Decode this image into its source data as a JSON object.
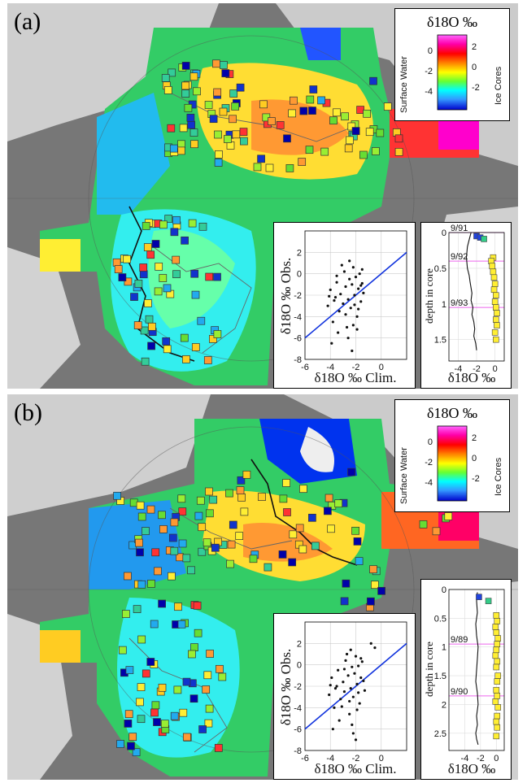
{
  "panels": [
    {
      "label": "(a)",
      "legend": {
        "title": "δ18O ‰",
        "left_label": "Surface Water",
        "right_label": "Ice Cores",
        "left_ticks": [
          "0",
          "-2",
          "-4"
        ],
        "right_ticks": [
          "2",
          "0",
          "-2"
        ]
      },
      "scatter": {
        "xlabel": "δ18O ‰ Clim.",
        "ylabel": "δ18O ‰ Obs.",
        "xticks": [
          "-6",
          "-4",
          "-2",
          "0"
        ],
        "yticks": [
          "2",
          "0",
          "-2",
          "-4",
          "-6",
          "-8"
        ]
      },
      "profile": {
        "xlabel": "δ18O ‰",
        "ylabel": "depth in core",
        "xticks": [
          "-4",
          "-2",
          "0"
        ],
        "yticks": [
          "0",
          "0.5",
          "1",
          "1.5"
        ],
        "year_labels": [
          "9/91",
          "9/92",
          "9/93"
        ]
      }
    },
    {
      "label": "(b)",
      "legend": {
        "title": "δ18O ‰",
        "left_label": "Surface Water",
        "right_label": "Ice Cores",
        "left_ticks": [
          "0",
          "-2",
          "-4"
        ],
        "right_ticks": [
          "2",
          "0",
          "-2"
        ]
      },
      "scatter": {
        "xlabel": "δ18O ‰ Clim.",
        "ylabel": "δ18O ‰ Obs.",
        "xticks": [
          "-6",
          "-4",
          "-2",
          "0"
        ],
        "yticks": [
          "2",
          "0",
          "-2",
          "-4",
          "-6",
          "-8"
        ]
      },
      "profile": {
        "xlabel": "δ18O ‰",
        "ylabel": "depth in core",
        "xticks": [
          "-4",
          "-2",
          "0"
        ],
        "yticks": [
          "0",
          "0.5",
          "1",
          "1.5",
          "2",
          "2.5"
        ],
        "year_labels": [
          "9/89",
          "9/90"
        ]
      }
    }
  ],
  "chart_data": [
    {
      "type": "scatter",
      "panel": "(a)",
      "xlabel": "δ18O ‰ Clim.",
      "ylabel": "δ18O ‰ Obs.",
      "xlim": [
        -6,
        2
      ],
      "ylim": [
        -8,
        4
      ],
      "series": [
        {
          "x": [
            -4.2,
            -4.0,
            -3.8,
            -3.6,
            -3.5,
            -3.3,
            -3.2,
            -3.0,
            -2.9,
            -2.8,
            -2.7,
            -2.6,
            -2.5,
            -2.4,
            -2.3,
            -2.2,
            -2.1,
            -2.0,
            -1.9,
            -1.8,
            -1.7,
            -1.6,
            -1.5,
            -1.4,
            -3.9,
            -3.4,
            -3.1,
            -2.6,
            -2.2,
            -1.8,
            -1.5,
            -2.5,
            -3.7,
            -2.1,
            -1.9,
            -3.5,
            -2.8,
            -2.3,
            -1.6,
            -4.1
          ],
          "y": [
            -3.0,
            -1.5,
            -4.5,
            -2.2,
            -0.8,
            -3.5,
            -1.9,
            -2.8,
            0.2,
            -1.2,
            -5.0,
            -2.4,
            -0.5,
            -3.2,
            -1.0,
            0.6,
            -2.0,
            -0.3,
            -4.0,
            -1.4,
            0.0,
            -2.6,
            -0.9,
            -1.8,
            -6.5,
            -5.5,
            0.8,
            -6.0,
            -4.8,
            -3.3,
            0.4,
            1.2,
            -2.5,
            -2.9,
            -5.2,
            -0.2,
            -3.8,
            -7.2,
            -1.1,
            -2.1
          ]
        }
      ]
    },
    {
      "type": "line",
      "panel": "(a) core profile",
      "xlabel": "δ18O ‰",
      "ylabel": "depth in core",
      "xlim": [
        -5,
        1
      ],
      "ylim": [
        1.8,
        0
      ],
      "series": [
        {
          "x": [
            -2.6,
            -2.8,
            -3.0,
            -3.1,
            -3.0,
            -2.8,
            -2.7,
            -2.5,
            -2.6,
            -2.4,
            -2.5,
            -2.3,
            -2.2,
            -2.3,
            -2.1,
            -2.0
          ],
          "y": [
            0.0,
            0.1,
            0.2,
            0.35,
            0.5,
            0.6,
            0.7,
            0.85,
            0.95,
            1.05,
            1.15,
            1.25,
            1.35,
            1.45,
            1.55,
            1.65
          ]
        },
        {
          "x": [
            -2.0,
            -1.6,
            -1.2,
            -0.2,
            -0.4,
            -0.3,
            -0.2,
            -0.1,
            0.0,
            -0.1,
            0.1,
            0.0,
            0.1,
            0.2,
            0.1,
            0.2,
            0.0,
            0.1
          ],
          "y": [
            0.05,
            0.07,
            0.09,
            0.35,
            0.4,
            0.47,
            0.55,
            0.63,
            0.72,
            0.8,
            0.88,
            0.97,
            1.05,
            1.13,
            1.22,
            1.3,
            1.4,
            1.5
          ]
        }
      ]
    },
    {
      "type": "scatter",
      "panel": "(b)",
      "xlabel": "δ18O ‰ Clim.",
      "ylabel": "δ18O ‰ Obs.",
      "xlim": [
        -6,
        2
      ],
      "ylim": [
        -8,
        4
      ],
      "series": [
        {
          "x": [
            -4.1,
            -3.9,
            -3.7,
            -3.5,
            -3.4,
            -3.2,
            -3.0,
            -2.9,
            -2.8,
            -2.6,
            -2.5,
            -2.4,
            -2.3,
            -2.2,
            -2.1,
            -2.0,
            -1.9,
            -1.8,
            -1.7,
            -1.6,
            -1.5,
            -1.3,
            -3.8,
            -3.3,
            -2.7,
            -2.2,
            -1.9,
            -1.6,
            -2.4,
            -3.6,
            -2.0,
            -1.8,
            -2.9,
            -2.5,
            -1.4,
            -4.0,
            -0.8,
            -0.5,
            -2.3,
            -3.1
          ],
          "y": [
            -2.8,
            -1.2,
            -4.0,
            -2.0,
            -0.5,
            -3.2,
            -1.6,
            -2.5,
            0.4,
            -1.0,
            -4.6,
            -2.2,
            -0.2,
            -3.0,
            -0.8,
            0.8,
            -1.8,
            -0.1,
            -3.6,
            -1.2,
            0.3,
            -2.4,
            -6.0,
            -5.2,
            1.0,
            -6.4,
            -4.2,
            0.6,
            1.4,
            -2.2,
            -7.0,
            -2.6,
            -0.4,
            -3.4,
            -1.5,
            -1.9,
            2.0,
            1.6,
            -5.6,
            -3.9
          ]
        }
      ]
    },
    {
      "type": "line",
      "panel": "(b) core profile",
      "xlabel": "δ18O ‰",
      "ylabel": "depth in core",
      "xlim": [
        -6,
        1
      ],
      "ylim": [
        2.8,
        0
      ],
      "series": [
        {
          "x": [
            -2.4,
            -2.5,
            -2.4,
            -2.6,
            -2.5,
            -2.3,
            -2.4,
            -2.5,
            -2.6,
            -2.4,
            -2.3,
            -2.5,
            -2.4,
            -2.6,
            -2.5,
            -2.3
          ],
          "y": [
            0.05,
            0.2,
            0.4,
            0.6,
            0.8,
            1.0,
            1.2,
            1.4,
            1.6,
            1.8,
            2.0,
            2.2,
            2.35,
            2.5,
            2.6,
            2.7
          ]
        },
        {
          "x": [
            -2.2,
            -1.0,
            0.0,
            0.1,
            -0.1,
            0.0,
            0.2,
            0.1,
            0.0,
            -0.1,
            0.1,
            0.0,
            0.2,
            0.1,
            0.0,
            0.1,
            -0.1,
            0.2,
            0.1,
            0.0,
            0.1,
            0.0
          ],
          "y": [
            0.13,
            0.2,
            0.45,
            0.55,
            0.65,
            0.75,
            0.85,
            0.95,
            1.05,
            1.15,
            1.25,
            1.35,
            1.5,
            1.6,
            1.75,
            1.85,
            1.95,
            2.05,
            2.2,
            2.3,
            2.4,
            2.55
          ]
        }
      ]
    }
  ]
}
